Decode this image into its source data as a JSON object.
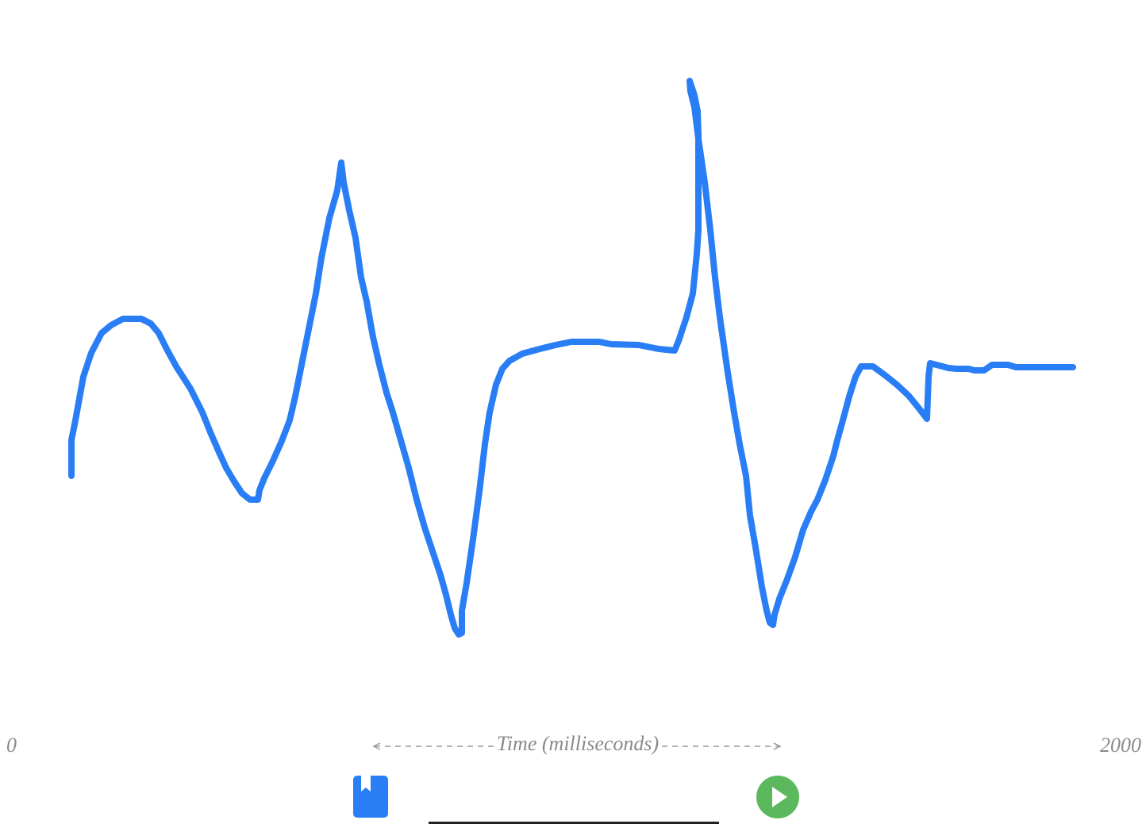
{
  "axis": {
    "min_label": "0",
    "max_label": "2000",
    "title": "Time (milliseconds)"
  }
}
